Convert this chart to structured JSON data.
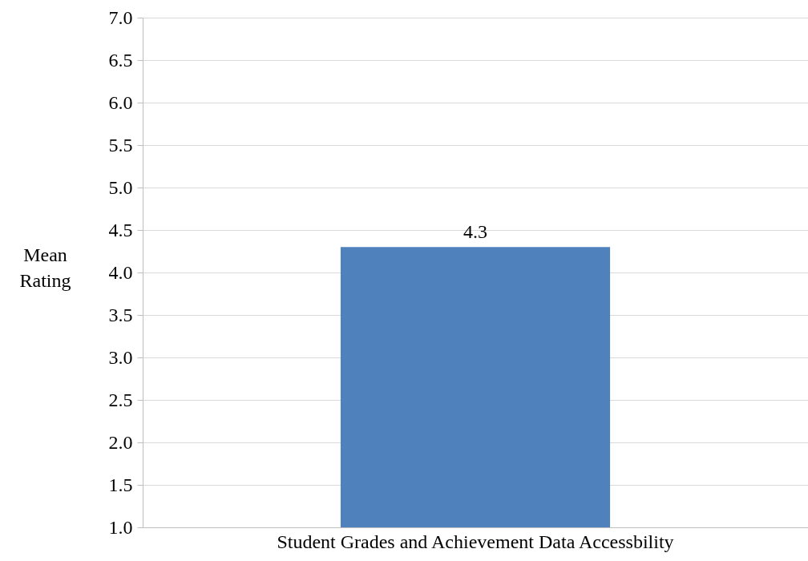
{
  "chart_data": {
    "type": "bar",
    "categories": [
      "Student Grades and Achievement Data Accessbility"
    ],
    "values": [
      4.3
    ],
    "color": "#4f81bd",
    "ylabel": "Mean Rating",
    "ylim": [
      1.0,
      7.0
    ],
    "yticks": [
      {
        "value": 1,
        "label": "1.0"
      },
      {
        "value": 1.5,
        "label": "1.5"
      },
      {
        "value": 2,
        "label": "2.0"
      },
      {
        "value": 2.5,
        "label": "2.5"
      },
      {
        "value": 3,
        "label": "3.0"
      },
      {
        "value": 3.5,
        "label": "3.5"
      },
      {
        "value": 4,
        "label": "4.0"
      },
      {
        "value": 4.5,
        "label": "4.5"
      },
      {
        "value": 5,
        "label": "5.0"
      },
      {
        "value": 5.5,
        "label": "5.5"
      },
      {
        "value": 6,
        "label": "6.0"
      },
      {
        "value": 6.5,
        "label": "6.5"
      },
      {
        "value": 7,
        "label": "7.0"
      }
    ],
    "grid": "y",
    "data_labels": true
  }
}
